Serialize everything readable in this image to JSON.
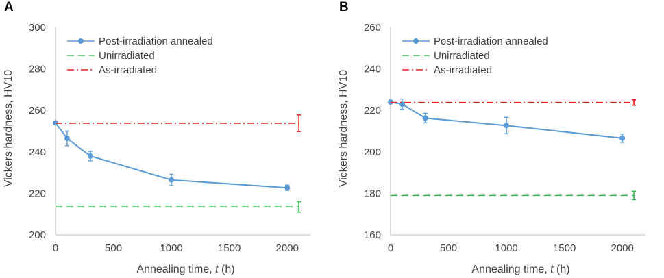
{
  "charts": [
    {
      "letter": "A",
      "chart_data": {
        "type": "line",
        "title": "",
        "xlabel_prefix": "Annealing time, ",
        "xlabel_var": "t",
        "xlabel_suffix": " (h)",
        "ylabel": "Vickers hardness, HV10",
        "xlim": [
          0,
          2200
        ],
        "ylim": [
          200,
          300
        ],
        "xticks": [
          0,
          500,
          1000,
          1500,
          2000
        ],
        "yticks": [
          200,
          220,
          240,
          260,
          280,
          300
        ],
        "legend_position": "top-left",
        "series": [
          {
            "name": "Post-irradiation annealed",
            "style": "solid-marker",
            "color": "#5B9BD5",
            "x": [
              0,
              100,
              300,
              1000,
              2000
            ],
            "y": [
              254,
              246.5,
              238,
              226.5,
              222.7
            ],
            "err": [
              0,
              3.5,
              2.3,
              2.7,
              1.3
            ]
          },
          {
            "name": "Unirradiated",
            "style": "dashed",
            "color": "#2EB84E",
            "x": [
              0,
              2100
            ],
            "y": [
              213.5,
              213.5
            ],
            "err_at": 2100,
            "err": 2.5
          },
          {
            "name": "As-irradiated",
            "style": "dashdot",
            "color": "#E0201B",
            "x": [
              0,
              2100
            ],
            "y": [
              253.8,
              253.8
            ],
            "err_at": 2100,
            "err": 4
          }
        ]
      }
    },
    {
      "letter": "B",
      "chart_data": {
        "type": "line",
        "title": "",
        "xlabel_prefix": "Annealing time, ",
        "xlabel_var": "t",
        "xlabel_suffix": " (h)",
        "ylabel": "Vickers hardness, HV10",
        "xlim": [
          0,
          2200
        ],
        "ylim": [
          160,
          260
        ],
        "xticks": [
          0,
          500,
          1000,
          1500,
          2000
        ],
        "yticks": [
          160,
          180,
          200,
          220,
          240,
          260
        ],
        "legend_position": "top-left",
        "series": [
          {
            "name": "Post-irradiation annealed",
            "style": "solid-marker",
            "color": "#5B9BD5",
            "x": [
              0,
              100,
              300,
              1000,
              2000
            ],
            "y": [
              224,
              223,
              216.3,
              212.7,
              206.6
            ],
            "err": [
              0,
              2.5,
              2.3,
              4,
              2
            ]
          },
          {
            "name": "Unirradiated",
            "style": "dashed",
            "color": "#2EB84E",
            "x": [
              0,
              2100
            ],
            "y": [
              179,
              179
            ],
            "err_at": 2100,
            "err": 2
          },
          {
            "name": "As-irradiated",
            "style": "dashdot",
            "color": "#E0201B",
            "x": [
              0,
              2100
            ],
            "y": [
              223.8,
              223.8
            ],
            "err_at": 2100,
            "err": 1.3
          }
        ]
      }
    }
  ]
}
